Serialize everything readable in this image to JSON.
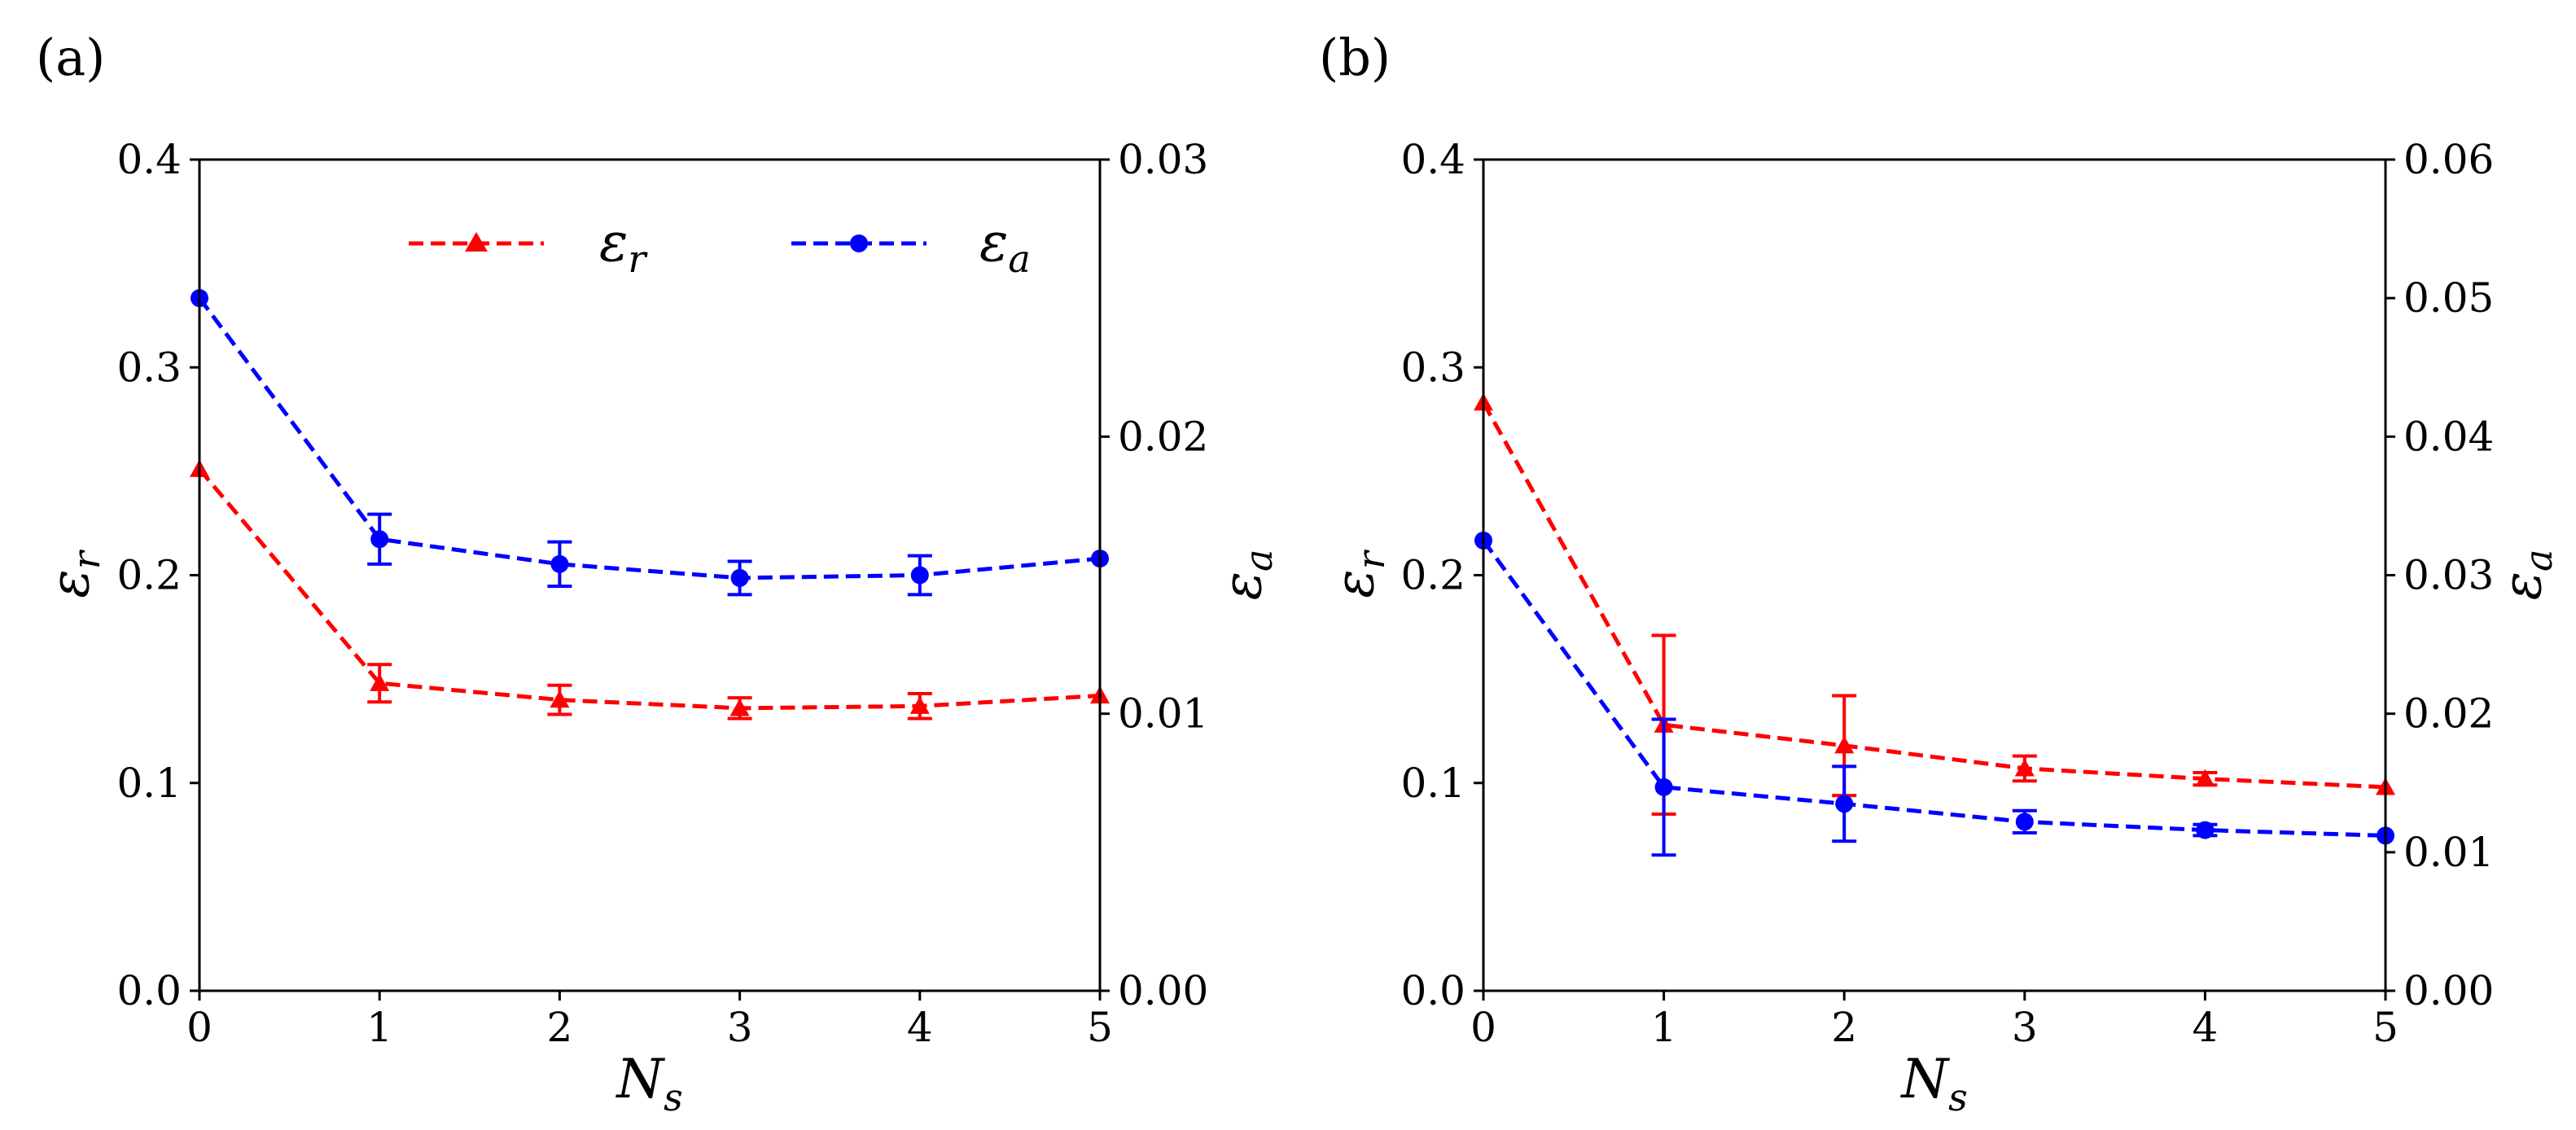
{
  "chart_data": [
    {
      "type": "line",
      "panel_label": "(a)",
      "xlabel": "N",
      "xlabel_sub": "s",
      "ylabel_left": "ε",
      "ylabel_left_sub": "r",
      "ylabel_right": "ε",
      "ylabel_right_sub": "a",
      "x": [
        0,
        1,
        2,
        3,
        4,
        5
      ],
      "xlim": [
        0,
        5
      ],
      "xticks": [
        "0",
        "1",
        "2",
        "3",
        "4",
        "5"
      ],
      "ylim_left": [
        0,
        0.4
      ],
      "yticks_left": [
        "0.0",
        "0.1",
        "0.2",
        "0.3",
        "0.4"
      ],
      "ylim_right": [
        0,
        0.03
      ],
      "yticks_right": [
        "0.00",
        "0.01",
        "0.02",
        "0.03"
      ],
      "legend": {
        "placement": "top-center",
        "entries": [
          {
            "label": "ε",
            "sub": "r",
            "color": "#ff0000",
            "marker": "triangle"
          },
          {
            "label": "ε",
            "sub": "a",
            "color": "#0000ff",
            "marker": "circle"
          }
        ]
      },
      "series": [
        {
          "name": "εr",
          "axis": "left",
          "color": "#ff0000",
          "marker": "triangle",
          "values": [
            0.251,
            0.148,
            0.14,
            0.136,
            0.137,
            0.142
          ],
          "errors": [
            0,
            0.009,
            0.007,
            0.005,
            0.006,
            0
          ]
        },
        {
          "name": "εa",
          "axis": "right",
          "color": "#0000ff",
          "marker": "circle",
          "values": [
            0.025,
            0.0163,
            0.0154,
            0.0149,
            0.015,
            0.0156
          ],
          "errors": [
            0,
            0.0009,
            0.0008,
            0.0006,
            0.0007,
            0
          ]
        }
      ]
    },
    {
      "type": "line",
      "panel_label": "(b)",
      "xlabel": "N",
      "xlabel_sub": "s",
      "ylabel_left": "ε",
      "ylabel_left_sub": "r",
      "ylabel_right": "ε",
      "ylabel_right_sub": "a",
      "x": [
        0,
        1,
        2,
        3,
        4,
        5
      ],
      "xlim": [
        0,
        5
      ],
      "xticks": [
        "0",
        "1",
        "2",
        "3",
        "4",
        "5"
      ],
      "ylim_left": [
        0,
        0.4
      ],
      "yticks_left": [
        "0.0",
        "0.1",
        "0.2",
        "0.3",
        "0.4"
      ],
      "ylim_right": [
        0,
        0.06
      ],
      "yticks_right": [
        "0.00",
        "0.01",
        "0.02",
        "0.03",
        "0.04",
        "0.05",
        "0.06"
      ],
      "series": [
        {
          "name": "εr",
          "axis": "left",
          "color": "#ff0000",
          "marker": "triangle",
          "values": [
            0.283,
            0.128,
            0.118,
            0.107,
            0.102,
            0.098
          ],
          "errors": [
            0,
            0.043,
            0.024,
            0.006,
            0.003,
            0
          ]
        },
        {
          "name": "εa",
          "axis": "right",
          "color": "#0000ff",
          "marker": "circle",
          "values": [
            0.0325,
            0.0147,
            0.0135,
            0.0122,
            0.0116,
            0.0112
          ],
          "errors": [
            0,
            0.0049,
            0.0027,
            0.0008,
            0.0004,
            0
          ]
        }
      ]
    }
  ]
}
